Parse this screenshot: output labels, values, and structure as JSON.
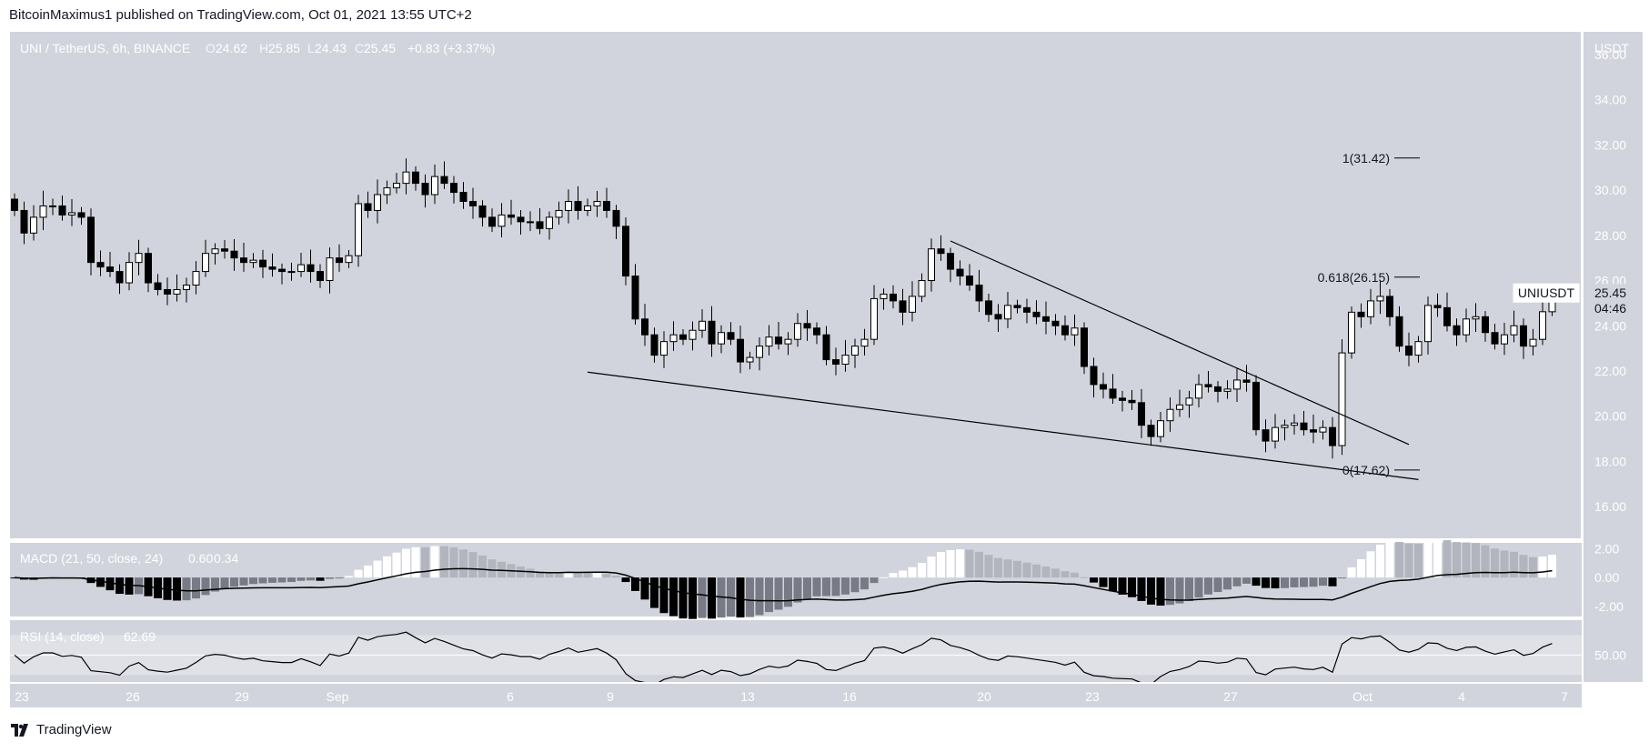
{
  "header": {
    "published_line": "BitcoinMaximus1 published on TradingView.com, Oct 01, 2021 13:55 UTC+2"
  },
  "footer": {
    "brand": "TradingView"
  },
  "colors": {
    "panel_bg": "#d1d4dc",
    "rsi_band": "#dfe1e6",
    "frame": "#ffffff",
    "candle_up_fill": "#ffffff",
    "candle_down_fill": "#000000",
    "candle_border": "#000000",
    "line": "#000000",
    "hist_pos_light": "#ffffff",
    "hist_pos_dark": "#b2b5be",
    "hist_neg_dark": "#000000",
    "hist_neg_light": "#787b86"
  },
  "chart_data": {
    "type": "candlestick",
    "symbol_legend": {
      "title": "UNI / TetherUS, 6h, BINANCE",
      "o_label": "O",
      "o_value": "24.62",
      "h_label": "H",
      "h_value": "25.85",
      "l_label": "L",
      "l_value": "24.43",
      "c_label": "C",
      "c_value": "25.45",
      "change": "+0.83 (+3.37%)"
    },
    "price_axis": {
      "unit": "USDT",
      "ticks": [
        "36.00",
        "34.00",
        "32.00",
        "30.00",
        "28.00",
        "26.00",
        "24.00",
        "22.00",
        "20.00",
        "18.00",
        "16.00"
      ],
      "range": [
        14.6,
        37.0
      ]
    },
    "time_axis": {
      "labels": [
        "23",
        "26",
        "29",
        "Sep",
        "6",
        "9",
        "13",
        "16",
        "20",
        "23",
        "27",
        "Oct",
        "4",
        "7"
      ]
    },
    "last_price_tag": {
      "symbol": "UNIUSDT",
      "price": "25.45",
      "countdown": "04:46",
      "value": 25.45
    },
    "fib_levels": [
      {
        "label": "1(31.42)",
        "value": 31.42
      },
      {
        "label": "0.618(26.15)",
        "value": 26.15
      },
      {
        "label": "0(17.62)",
        "value": 17.62
      }
    ],
    "trendlines": [
      {
        "name": "wedge-resistance",
        "start": {
          "bar": 98,
          "price": 27.75
        },
        "end": {
          "bar": 146,
          "price": 18.75
        }
      },
      {
        "name": "wedge-support",
        "start": {
          "bar": 60,
          "price": 21.95
        },
        "end": {
          "bar": 147,
          "price": 17.2
        }
      }
    ],
    "closes": [
      29.1,
      28.1,
      28.8,
      29.3,
      29.3,
      28.9,
      29.0,
      28.8,
      26.8,
      26.6,
      26.4,
      25.9,
      26.8,
      27.2,
      25.9,
      25.6,
      25.4,
      25.6,
      25.8,
      26.4,
      27.2,
      27.4,
      27.3,
      27.0,
      26.8,
      26.9,
      26.6,
      26.5,
      26.4,
      26.4,
      26.7,
      26.4,
      26.0,
      27.0,
      26.8,
      27.1,
      29.4,
      29.1,
      29.8,
      30.1,
      30.3,
      30.8,
      30.3,
      29.8,
      30.6,
      30.3,
      29.9,
      29.5,
      29.3,
      28.8,
      28.4,
      28.9,
      28.8,
      28.6,
      28.6,
      28.3,
      28.8,
      29.1,
      29.5,
      29.1,
      29.3,
      29.5,
      29.1,
      28.4,
      26.2,
      24.3,
      23.6,
      22.7,
      23.3,
      23.6,
      23.4,
      23.8,
      24.2,
      23.2,
      23.7,
      23.4,
      22.4,
      22.6,
      23.1,
      23.5,
      23.2,
      23.4,
      24.1,
      23.9,
      23.6,
      22.5,
      22.3,
      22.7,
      23.1,
      23.4,
      25.2,
      25.4,
      25.1,
      24.6,
      25.3,
      26.0,
      27.4,
      27.2,
      26.5,
      26.2,
      25.8,
      25.1,
      24.5,
      24.3,
      24.9,
      24.8,
      24.6,
      24.4,
      24.2,
      24.0,
      23.6,
      23.9,
      22.2,
      21.4,
      21.2,
      20.8,
      20.7,
      20.6,
      19.6,
      19.1,
      19.8,
      20.3,
      20.5,
      20.8,
      21.4,
      21.3,
      21.1,
      21.2,
      21.6,
      21.5,
      19.4,
      18.9,
      19.5,
      19.6,
      19.7,
      19.4,
      19.3,
      19.5,
      18.7,
      22.8,
      24.6,
      24.4,
      25.1,
      25.3,
      24.4,
      23.1,
      22.7,
      23.3,
      24.9,
      24.8,
      24.0,
      23.6,
      24.3,
      24.4,
      23.7,
      23.2,
      23.6,
      24.0,
      23.1,
      23.4,
      24.62,
      25.45
    ],
    "macd": {
      "settings": "MACD (21, 50, close, 24)",
      "histogram_value": "0.60",
      "signal_value": "0.34",
      "axis_ticks": [
        "2.00",
        "0.00",
        "-2.00"
      ],
      "range": [
        -2.7,
        2.4
      ]
    },
    "rsi": {
      "settings": "RSI (14, close)",
      "value": "62.69",
      "axis_ticks": [
        "50.00"
      ],
      "band_upper": 70,
      "band_lower": 30,
      "midline": 50
    }
  }
}
